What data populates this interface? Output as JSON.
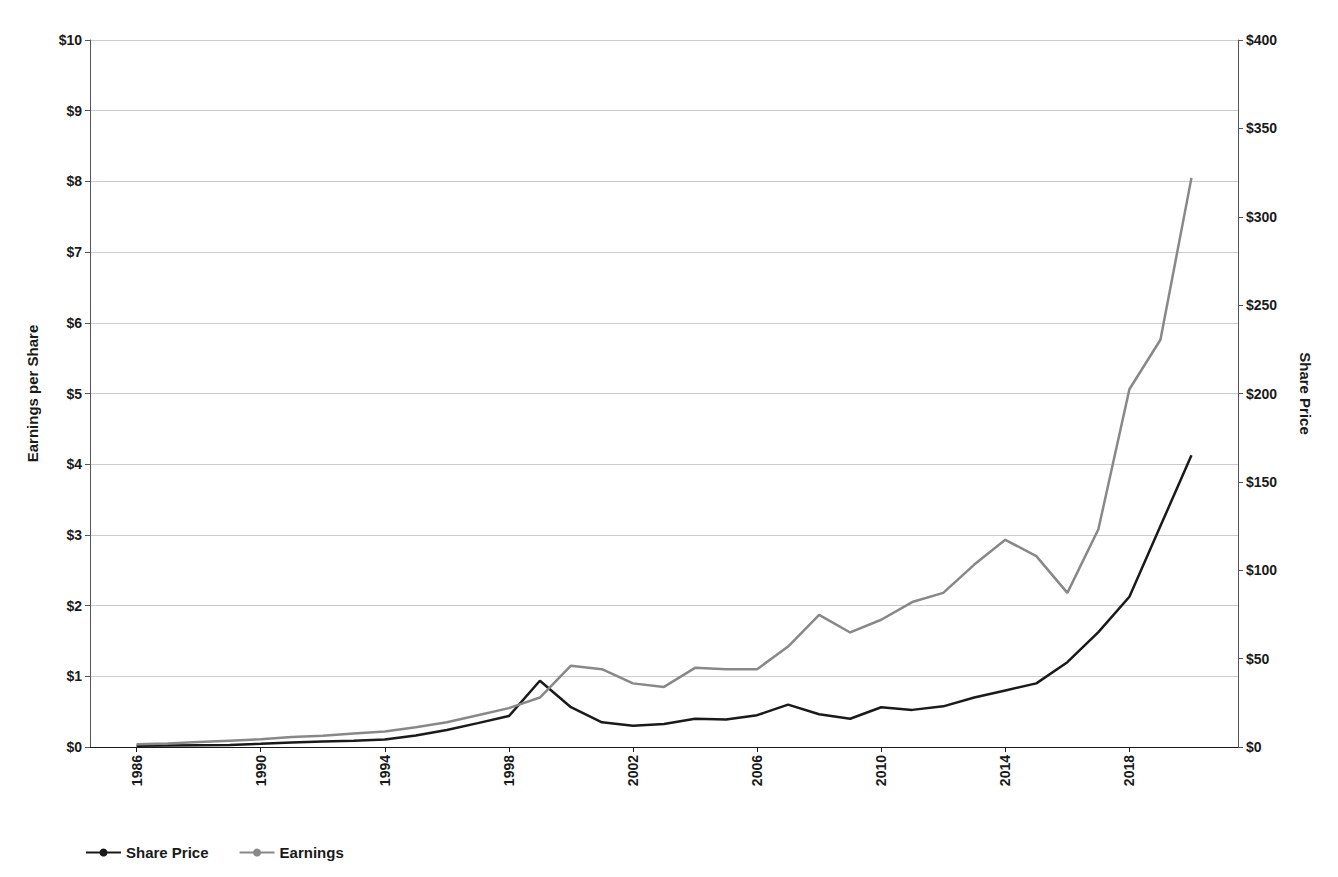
{
  "chart_data": {
    "type": "line",
    "x": [
      1986,
      1987,
      1988,
      1989,
      1990,
      1991,
      1992,
      1993,
      1994,
      1995,
      1996,
      1997,
      1998,
      1999,
      2000,
      2001,
      2002,
      2003,
      2004,
      2005,
      2006,
      2007,
      2008,
      2009,
      2010,
      2011,
      2012,
      2013,
      2014,
      2015,
      2016,
      2017,
      2018,
      2019,
      2020
    ],
    "series": [
      {
        "name": "Share Price",
        "color": "#1a1a1a",
        "axis": "y2",
        "values": [
          0.75,
          0.85,
          1.02,
          1.18,
          1.8,
          2.5,
          3.1,
          3.5,
          4.25,
          6.5,
          9.6,
          13.5,
          17.5,
          37.5,
          22.5,
          14.0,
          12.0,
          13.0,
          16.0,
          15.5,
          18.0,
          24.0,
          18.5,
          16.0,
          22.5,
          21.0,
          23.0,
          28.0,
          32.0,
          36.0,
          48.0,
          65.0,
          85.0,
          125.0,
          165.0
        ]
      },
      {
        "name": "Earnings",
        "color": "#888888",
        "axis": "y",
        "values": [
          0.04,
          0.05,
          0.07,
          0.09,
          0.11,
          0.14,
          0.16,
          0.19,
          0.22,
          0.28,
          0.35,
          0.45,
          0.55,
          0.7,
          1.15,
          1.1,
          0.9,
          0.85,
          1.12,
          1.1,
          1.1,
          1.42,
          1.87,
          1.62,
          1.8,
          2.05,
          2.18,
          2.58,
          2.93,
          2.7,
          2.18,
          3.08,
          5.06,
          5.76,
          8.05
        ]
      }
    ],
    "ylabel": "Earnings per Share",
    "y2label": "Share Price",
    "xlim": [
      1984.5,
      2021.5
    ],
    "xticks": [
      1986,
      1990,
      1994,
      1998,
      2002,
      2006,
      2010,
      2014,
      2018
    ],
    "ylim": [
      0,
      10
    ],
    "yticks": [
      {
        "value": 0,
        "label": "$0"
      },
      {
        "value": 1,
        "label": "$1"
      },
      {
        "value": 2,
        "label": "$2"
      },
      {
        "value": 3,
        "label": "$3"
      },
      {
        "value": 4,
        "label": "$4"
      },
      {
        "value": 5,
        "label": "$5"
      },
      {
        "value": 6,
        "label": "$6"
      },
      {
        "value": 7,
        "label": "$7"
      },
      {
        "value": 8,
        "label": "$8"
      },
      {
        "value": 9,
        "label": "$9"
      },
      {
        "value": 10,
        "label": "$10"
      }
    ],
    "y2lim": [
      0,
      400
    ],
    "y2ticks": [
      {
        "value": 0,
        "label": "$0"
      },
      {
        "value": 50,
        "label": "$50"
      },
      {
        "value": 100,
        "label": "$100"
      },
      {
        "value": 150,
        "label": "$150"
      },
      {
        "value": 200,
        "label": "$200"
      },
      {
        "value": 250,
        "label": "$250"
      },
      {
        "value": 300,
        "label": "$300"
      },
      {
        "value": 350,
        "label": "$350"
      },
      {
        "value": 400,
        "label": "$400"
      }
    ],
    "grid": true,
    "legend": "lower left"
  }
}
